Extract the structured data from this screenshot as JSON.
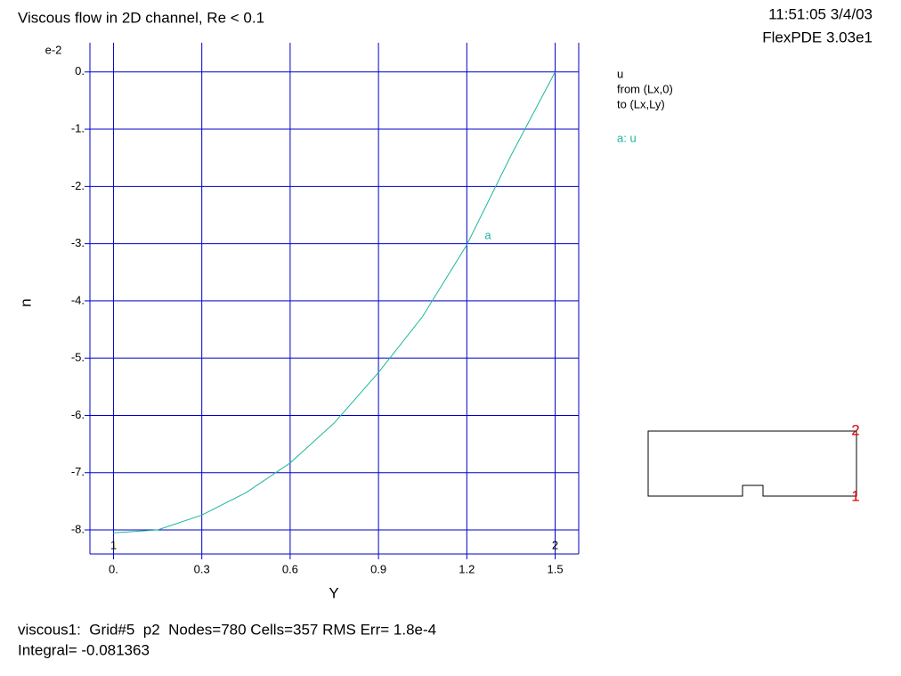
{
  "chart_data": {
    "type": "line",
    "title": "Viscous flow in 2D channel, Re < 0.1",
    "timestamp": "11:51:05 3/4/03",
    "software": "FlexPDE 3.03e1",
    "y_multiplier": "e-2",
    "xlabel": "Y",
    "ylabel": "u",
    "legend_title": [
      "u",
      "from (Lx,0)",
      "to (Lx,Ly)"
    ],
    "series": [
      {
        "name": "a: u",
        "tag": "a",
        "color": "#1ab79c",
        "values": [
          -8.05,
          -8.0,
          -7.74,
          -7.35,
          -6.83,
          -6.13,
          -5.25,
          -4.27,
          -3.02,
          -1.46,
          0
        ]
      }
    ],
    "x": [
      0,
      0.15,
      0.3,
      0.45,
      0.6,
      0.75,
      0.9,
      1.05,
      1.2,
      1.35,
      1.5
    ],
    "xlim": [
      -0.08,
      1.58
    ],
    "ylim": [
      -8.42,
      0.51
    ],
    "xticks": [
      {
        "value": 0,
        "label": "0."
      },
      0.3,
      0.6,
      0.9,
      1.2,
      1.5
    ],
    "yticks": [
      {
        "value": 0,
        "label": "0."
      },
      {
        "value": -1,
        "label": "-1."
      },
      {
        "value": -2,
        "label": "-2."
      },
      {
        "value": -3,
        "label": "-3."
      },
      {
        "value": -4,
        "label": "-4."
      },
      {
        "value": -5,
        "label": "-5."
      },
      {
        "value": -6,
        "label": "-6."
      },
      {
        "value": -7,
        "label": "-7."
      },
      {
        "value": -8,
        "label": "-8."
      }
    ],
    "grid": true,
    "endpoint_labels": [
      "1",
      "2"
    ],
    "domain_labels": [
      "2",
      "1"
    ],
    "footer": [
      "viscous1:  Grid#5  p2  Nodes=780 Cells=357 RMS Err= 1.8e-4",
      "Integral= -0.081363"
    ]
  }
}
